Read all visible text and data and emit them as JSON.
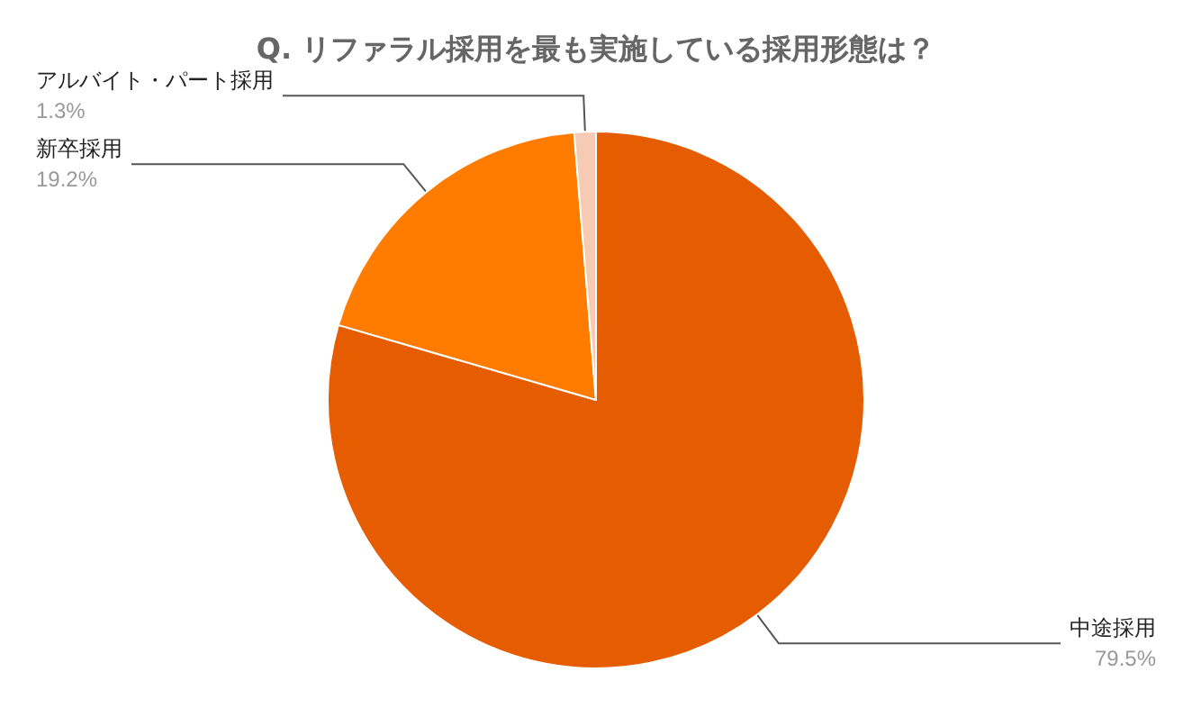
{
  "chart_data": {
    "type": "pie",
    "title": "Q. リファラル採用を最も実施している採用形態は？",
    "categories": [
      "中途採用",
      "新卒採用",
      "アルバイト・パート採用"
    ],
    "values": [
      79.5,
      19.2,
      1.3
    ],
    "value_labels": [
      "79.5%",
      "19.2%",
      "1.3%"
    ],
    "colors": [
      "#e65c00",
      "#ff7c00",
      "#f7cbb3"
    ],
    "legend": false
  }
}
